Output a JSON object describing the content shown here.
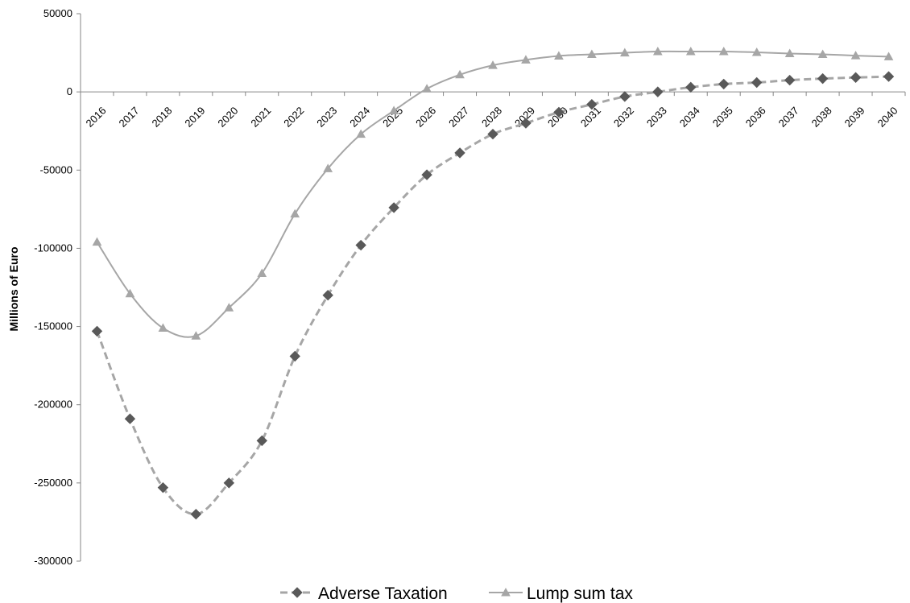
{
  "chart_data": {
    "type": "line",
    "title": "",
    "xlabel": "",
    "ylabel": "Millions of Euro",
    "x": [
      "2016",
      "2017",
      "2018",
      "2019",
      "2020",
      "2021",
      "2022",
      "2023",
      "2024",
      "2025",
      "2026",
      "2027",
      "2028",
      "2029",
      "2030",
      "2031",
      "2032",
      "2033",
      "2034",
      "2035",
      "2036",
      "2037",
      "2038",
      "2039",
      "2040"
    ],
    "ylim": [
      -300000,
      50000
    ],
    "yticks": [
      50000,
      0,
      -50000,
      -100000,
      -150000,
      -200000,
      -250000,
      -300000
    ],
    "ytick_labels": [
      "50000",
      "0",
      "-50000",
      "-100000",
      "-150000",
      "-200000",
      "-250000",
      "-300000"
    ],
    "grid": false,
    "legend_position": "bottom",
    "series": [
      {
        "name": "Adverse Taxation",
        "style": "dashed",
        "marker": "diamond",
        "color": "#a6a6a6",
        "marker_color": "#595959",
        "values": [
          -153000,
          -209000,
          -253000,
          -270000,
          -250000,
          -223000,
          -169000,
          -130000,
          -98000,
          -74000,
          -53000,
          -39000,
          -27000,
          -20000,
          -13000,
          -8000,
          -3000,
          0,
          3000,
          5000,
          6000,
          7500,
          8500,
          9200,
          9800
        ]
      },
      {
        "name": "Lump sum tax",
        "style": "solid",
        "marker": "triangle",
        "color": "#a6a6a6",
        "marker_color": "#a6a6a6",
        "values": [
          -96000,
          -129000,
          -151000,
          -156000,
          -138000,
          -116000,
          -78000,
          -49000,
          -27000,
          -12000,
          2000,
          11000,
          17000,
          20500,
          23000,
          24000,
          25000,
          25800,
          25800,
          25800,
          25300,
          24500,
          24000,
          23200,
          22500
        ]
      }
    ]
  }
}
